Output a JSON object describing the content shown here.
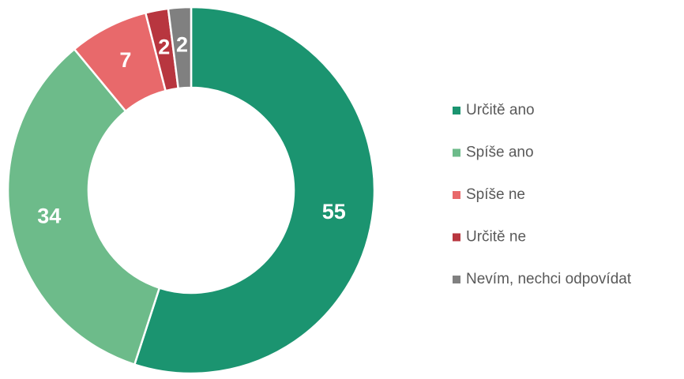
{
  "chart_data": {
    "type": "donut",
    "categories": [
      "Určitě ano",
      "Spíše ano",
      "Spíše ne",
      "Určitě ne",
      "Nevím, nechci odpovídat"
    ],
    "values": [
      55,
      34,
      7,
      2,
      2
    ],
    "colors": [
      "#1b9470",
      "#6dbb8a",
      "#e8696b",
      "#b8363f",
      "#808080"
    ],
    "legend": "right"
  }
}
